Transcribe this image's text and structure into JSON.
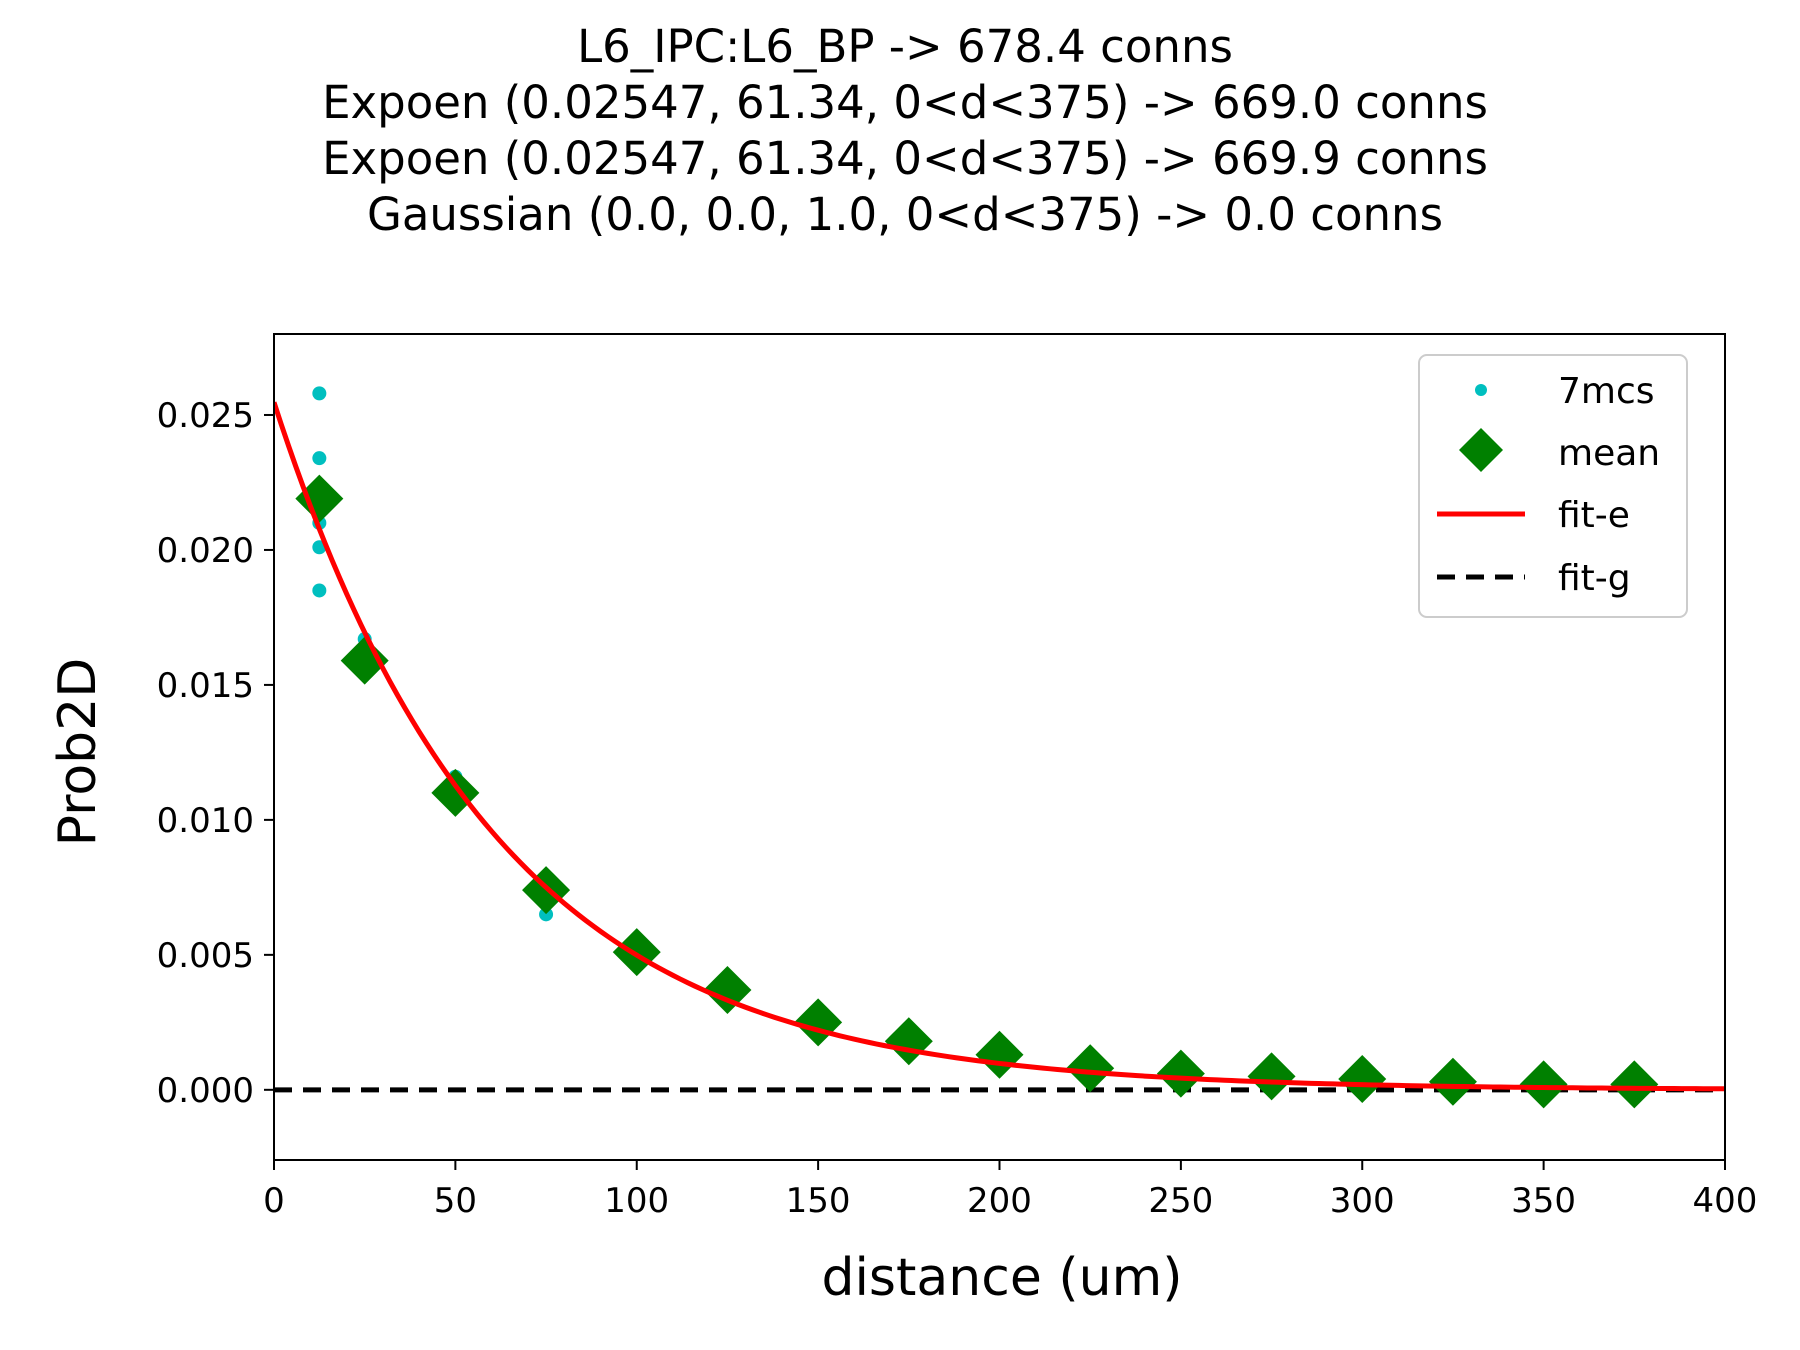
{
  "chart_data": {
    "type": "scatter",
    "title_lines": [
      "L6_IPC:L6_BP -> 678.4 conns",
      "Expoen (0.02547, 61.34, 0<d<375) -> 669.0 conns",
      "Expoen (0.02547, 61.34, 0<d<375) -> 669.9 conns",
      "Gaussian (0.0, 0.0, 1.0, 0<d<375) -> 0.0 conns"
    ],
    "xlabel": "distance (um)",
    "ylabel": "Prob2D",
    "xlim": [
      0,
      400
    ],
    "ylim": [
      -0.0026,
      0.028
    ],
    "xticks": [
      0,
      50,
      100,
      150,
      200,
      250,
      300,
      350,
      400
    ],
    "xtick_labels": [
      "0",
      "50",
      "100",
      "150",
      "200",
      "250",
      "300",
      "350",
      "400"
    ],
    "yticks": [
      0.0,
      0.005,
      0.01,
      0.015,
      0.02,
      0.025
    ],
    "ytick_labels": [
      "0.000",
      "0.005",
      "0.010",
      "0.015",
      "0.020",
      "0.025"
    ],
    "grid": false,
    "legend_position": "top-right",
    "series": [
      {
        "name": "7mcs",
        "kind": "dots",
        "color": "#00bfbf",
        "points": [
          [
            12.5,
            0.0258
          ],
          [
            12.5,
            0.0234
          ],
          [
            12.5,
            0.0219
          ],
          [
            12.5,
            0.021
          ],
          [
            12.5,
            0.0201
          ],
          [
            12.5,
            0.0185
          ],
          [
            25,
            0.0167
          ],
          [
            25,
            0.016
          ],
          [
            25,
            0.0155
          ],
          [
            50,
            0.0116
          ],
          [
            50,
            0.011
          ],
          [
            50,
            0.0106
          ],
          [
            75,
            0.0077
          ],
          [
            75,
            0.0072
          ],
          [
            75,
            0.0065
          ],
          [
            100,
            0.0053
          ],
          [
            100,
            0.005
          ],
          [
            125,
            0.0038
          ],
          [
            125,
            0.0036
          ],
          [
            150,
            0.0026
          ],
          [
            150,
            0.0024
          ],
          [
            175,
            0.0019
          ],
          [
            175,
            0.0017
          ],
          [
            200,
            0.0013
          ],
          [
            200,
            0.0012
          ],
          [
            225,
            0.0009
          ],
          [
            250,
            0.0006
          ],
          [
            275,
            0.0005
          ],
          [
            300,
            0.0004
          ],
          [
            325,
            0.0003
          ],
          [
            350,
            0.0002
          ],
          [
            375,
            0.0002
          ]
        ]
      },
      {
        "name": "mean",
        "kind": "diamonds",
        "color": "#008000",
        "points": [
          [
            12.5,
            0.0219
          ],
          [
            25,
            0.0159
          ],
          [
            50,
            0.011
          ],
          [
            75,
            0.0074
          ],
          [
            100,
            0.0051
          ],
          [
            125,
            0.0037
          ],
          [
            150,
            0.0025
          ],
          [
            175,
            0.0018
          ],
          [
            200,
            0.0013
          ],
          [
            225,
            0.0008
          ],
          [
            250,
            0.0006
          ],
          [
            275,
            0.0005
          ],
          [
            300,
            0.0004
          ],
          [
            325,
            0.0003
          ],
          [
            350,
            0.0002
          ],
          [
            375,
            0.0002
          ]
        ]
      },
      {
        "name": "fit-e",
        "kind": "line",
        "color": "#ff0000",
        "function": "exponential",
        "amplitude": 0.02547,
        "length_constant": 61.34,
        "x_range": [
          0,
          400
        ]
      },
      {
        "name": "fit-g",
        "kind": "dashed-line",
        "color": "#000000",
        "y_value": 0.0,
        "x_range": [
          0,
          400
        ]
      }
    ]
  }
}
